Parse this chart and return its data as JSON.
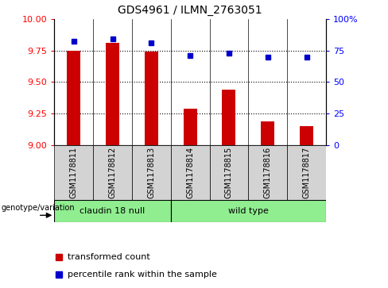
{
  "title": "GDS4961 / ILMN_2763051",
  "samples": [
    "GSM1178811",
    "GSM1178812",
    "GSM1178813",
    "GSM1178814",
    "GSM1178815",
    "GSM1178816",
    "GSM1178817"
  ],
  "red_values": [
    9.75,
    9.81,
    9.74,
    9.29,
    9.44,
    9.19,
    9.15
  ],
  "blue_values": [
    82,
    84,
    81,
    71,
    73,
    70,
    70
  ],
  "ylim_left": [
    9.0,
    10.0
  ],
  "ylim_right": [
    0,
    100
  ],
  "yticks_left": [
    9.0,
    9.25,
    9.5,
    9.75,
    10.0
  ],
  "yticks_right": [
    0,
    25,
    50,
    75,
    100
  ],
  "ytick_labels_right": [
    "0",
    "25",
    "50",
    "75",
    "100%"
  ],
  "groups": [
    {
      "label": "claudin 18 null",
      "indices": [
        0,
        1,
        2
      ],
      "color": "#90EE90"
    },
    {
      "label": "wild type",
      "indices": [
        3,
        4,
        5,
        6
      ],
      "color": "#90EE90"
    }
  ],
  "group_label": "genotype/variation",
  "legend_red": "transformed count",
  "legend_blue": "percentile rank within the sample",
  "bar_color": "#cc0000",
  "dot_color": "#0000cc",
  "bar_width": 0.35,
  "ybase": 9.0,
  "grid_yticks": [
    9.25,
    9.5,
    9.75
  ],
  "fig_width": 4.88,
  "fig_height": 3.63
}
